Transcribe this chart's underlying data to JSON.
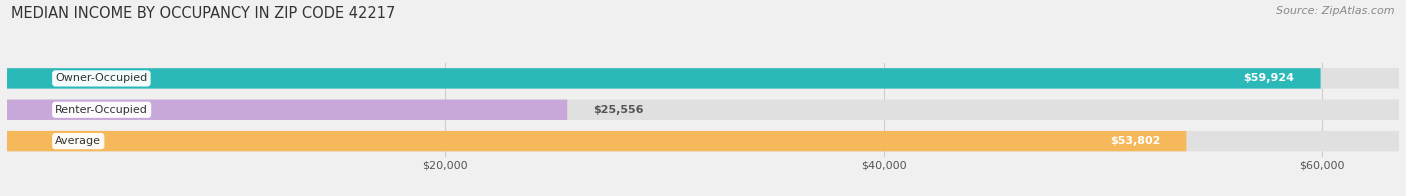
{
  "title": "MEDIAN INCOME BY OCCUPANCY IN ZIP CODE 42217",
  "source": "Source: ZipAtlas.com",
  "categories": [
    "Owner-Occupied",
    "Renter-Occupied",
    "Average"
  ],
  "values": [
    59924,
    25556,
    53802
  ],
  "bar_colors": [
    "#2ab8b8",
    "#c8a8d8",
    "#f5b85a"
  ],
  "value_labels": [
    "$59,924",
    "$25,556",
    "$53,802"
  ],
  "x_ticks": [
    20000,
    40000,
    60000
  ],
  "x_tick_labels": [
    "$20,000",
    "$40,000",
    "$60,000"
  ],
  "xlim_max": 63500,
  "background_color": "#f0f0f0",
  "bar_bg_color": "#e0e0e0",
  "title_fontsize": 10.5,
  "source_fontsize": 8,
  "bar_label_fontsize": 8,
  "value_fontsize": 8
}
